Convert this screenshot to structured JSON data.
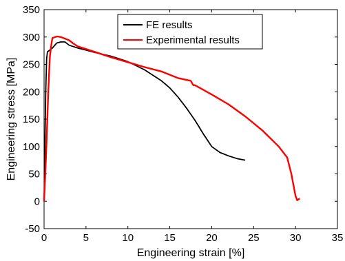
{
  "chart_data": {
    "type": "line",
    "xlabel": "Engineering strain [%]",
    "ylabel": "Engineering stress [MPa]",
    "xlim": [
      0,
      35
    ],
    "ylim": [
      -50,
      350
    ],
    "xticks": [
      0,
      5,
      10,
      15,
      20,
      25,
      30,
      35
    ],
    "yticks": [
      -50,
      0,
      50,
      100,
      150,
      200,
      250,
      300,
      350
    ],
    "xtick_labels": [
      "0",
      "5",
      "10",
      "15",
      "20",
      "25",
      "30",
      "35"
    ],
    "ytick_labels": [
      "-50",
      "0",
      "50",
      "100",
      "150",
      "200",
      "250",
      "300",
      "350"
    ],
    "grid": false,
    "legend_position": "top-center",
    "series": [
      {
        "name": "FE results",
        "color": "#000000",
        "x": [
          0,
          0.1,
          0.2,
          0.3,
          0.4,
          0.5,
          1.0,
          1.5,
          2.0,
          2.5,
          3.0,
          4.0,
          5.0,
          6.0,
          8.0,
          10.0,
          12.0,
          14.0,
          15.0,
          16.0,
          17.0,
          18.0,
          19.0,
          20.0,
          21.0,
          22.0,
          23.0,
          24.0
        ],
        "y": [
          0,
          100,
          200,
          260,
          273,
          274,
          280,
          289,
          291,
          291,
          285,
          280,
          276,
          272,
          265,
          255,
          240,
          220,
          207,
          190,
          170,
          148,
          123,
          100,
          89,
          83,
          78,
          75
        ]
      },
      {
        "name": "Experimental results",
        "color": "#ff0000",
        "x": [
          0,
          0.15,
          0.3,
          0.5,
          0.7,
          0.9,
          1.0,
          1.3,
          1.6,
          2.0,
          2.5,
          3.0,
          3.5,
          4.0,
          5.0,
          6.0,
          8.0,
          10.0,
          12.0,
          14.0,
          16.0,
          17.5,
          17.8,
          18.0,
          20.0,
          22.0,
          24.0,
          26.0,
          28.0,
          29.0,
          29.5,
          30.0,
          30.2,
          30.5
        ],
        "y": [
          0,
          50,
          110,
          200,
          265,
          290,
          298,
          300,
          301,
          300,
          297,
          294,
          288,
          283,
          278,
          273,
          263,
          254,
          245,
          237,
          225,
          220,
          212,
          212,
          195,
          177,
          155,
          130,
          100,
          80,
          50,
          10,
          2,
          5
        ]
      }
    ]
  }
}
